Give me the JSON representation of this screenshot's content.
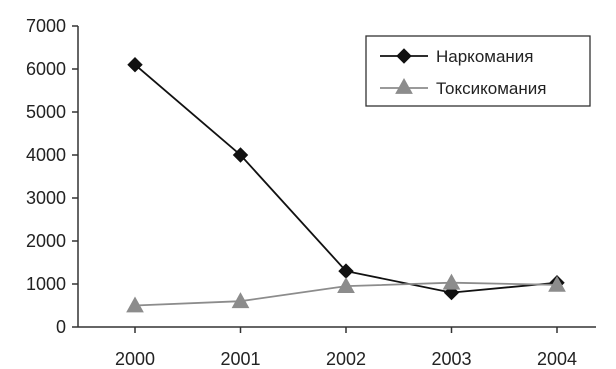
{
  "chart_data": {
    "type": "line",
    "title": "",
    "xlabel": "",
    "ylabel": "",
    "categories": [
      "2000",
      "2001",
      "2002",
      "2003",
      "2004"
    ],
    "ylim": [
      0,
      7000
    ],
    "yticks": [
      0,
      1000,
      2000,
      3000,
      4000,
      5000,
      6000,
      7000
    ],
    "grid": false,
    "legend_position": "top-right",
    "series": [
      {
        "name": "Наркомания",
        "values": [
          6100,
          4000,
          1300,
          800,
          1030
        ],
        "color": "#111111",
        "marker": "diamond"
      },
      {
        "name": "Токсикомания",
        "values": [
          500,
          600,
          950,
          1030,
          980
        ],
        "color": "#8c8c8c",
        "marker": "triangle"
      }
    ]
  }
}
